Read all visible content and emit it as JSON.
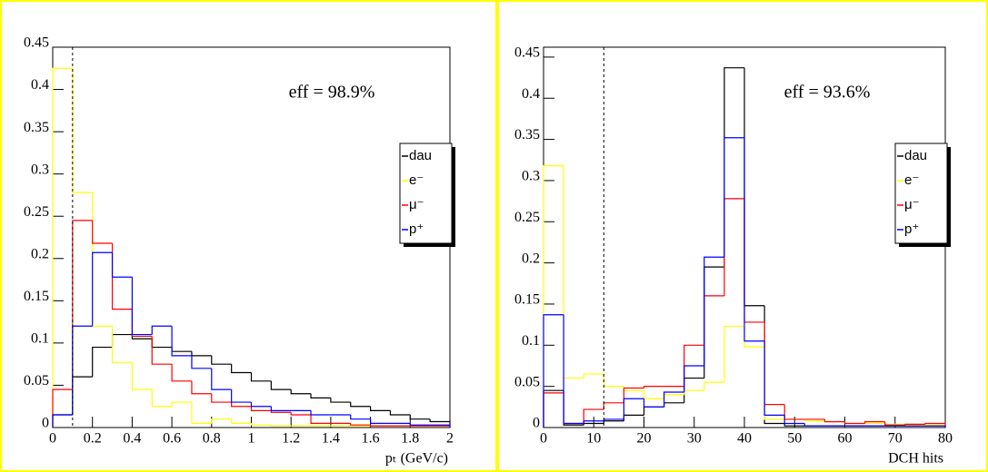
{
  "chart_data": [
    {
      "type": "histogram",
      "xlabel": "pₜ (GeV/c)",
      "annotation": "eff = 98.9%",
      "cut": 0.1,
      "bins": [
        0,
        0.1,
        0.2,
        0.3,
        0.4,
        0.5,
        0.6,
        0.7,
        0.8,
        0.9,
        1.0,
        1.1,
        1.2,
        1.3,
        1.4,
        1.5,
        1.6,
        1.7,
        1.8,
        1.9,
        2.0
      ],
      "xlim": [
        0,
        2
      ],
      "xticks": [
        0,
        0.2,
        0.4,
        0.6,
        0.8,
        1,
        1.2,
        1.4,
        1.6,
        1.8,
        2
      ],
      "ylim": [
        0,
        0.45
      ],
      "yticks": [
        0,
        0.05,
        0.1,
        0.15,
        0.2,
        0.25,
        0.3,
        0.35,
        0.4,
        0.45
      ],
      "series": [
        {
          "name": "dau",
          "color": "#000000",
          "values": [
            0.015,
            0.06,
            0.095,
            0.11,
            0.105,
            0.095,
            0.09,
            0.085,
            0.075,
            0.065,
            0.055,
            0.045,
            0.04,
            0.035,
            0.03,
            0.025,
            0.02,
            0.015,
            0.01,
            0.007
          ]
        },
        {
          "name": "e⁻",
          "color": "#ffff00",
          "values": [
            0.425,
            0.278,
            0.12,
            0.077,
            0.045,
            0.025,
            0.03,
            0.005,
            0.01,
            0.005,
            0.003,
            0.002,
            0.002,
            0.002,
            0.002,
            0.002,
            0.002,
            0.002,
            0.002,
            0.002
          ]
        },
        {
          "name": "μ⁻",
          "color": "#ff0000",
          "values": [
            0.045,
            0.245,
            0.218,
            0.14,
            0.108,
            0.075,
            0.055,
            0.04,
            0.03,
            0.025,
            0.02,
            0.018,
            0.015,
            0.005,
            0.005,
            0.003,
            0.002,
            0.002,
            0.002,
            0.002
          ]
        },
        {
          "name": "p⁺",
          "color": "#0000ff",
          "values": [
            0.015,
            0.12,
            0.207,
            0.178,
            0.11,
            0.12,
            0.085,
            0.07,
            0.045,
            0.03,
            0.025,
            0.02,
            0.02,
            0.015,
            0.015,
            0.01,
            0.005,
            0.005,
            0.003,
            0.003
          ]
        }
      ]
    },
    {
      "type": "histogram",
      "xlabel": "DCH hits",
      "annotation": "eff = 93.6%",
      "cut": 12,
      "bins": [
        0,
        4,
        8,
        12,
        16,
        20,
        24,
        28,
        32,
        36,
        40,
        44,
        48,
        52,
        56,
        60,
        64,
        68,
        72,
        76,
        80
      ],
      "xlim": [
        0,
        80
      ],
      "xticks": [
        0,
        10,
        20,
        30,
        40,
        50,
        60,
        70,
        80
      ],
      "ylim": [
        0,
        0.462
      ],
      "yticks": [
        0,
        0.05,
        0.1,
        0.15,
        0.2,
        0.25,
        0.3,
        0.35,
        0.4,
        0.45
      ],
      "series": [
        {
          "name": "dau",
          "color": "#000000",
          "values": [
            0.045,
            0.003,
            0.005,
            0.008,
            0.015,
            0.025,
            0.03,
            0.06,
            0.195,
            0.437,
            0.148,
            0.005,
            0.002,
            0.002,
            0.002,
            0.002,
            0.002,
            0.002,
            0.002,
            0.002
          ]
        },
        {
          "name": "e⁻",
          "color": "#ffff00",
          "values": [
            0.318,
            0.06,
            0.065,
            0.05,
            0.045,
            0.035,
            0.04,
            0.045,
            0.055,
            0.123,
            0.098,
            0.01,
            0.01,
            0.008,
            0.007,
            0.005,
            0.005,
            0.004,
            0.003,
            0.003
          ]
        },
        {
          "name": "μ⁻",
          "color": "#ff0000",
          "values": [
            0.042,
            0.005,
            0.022,
            0.03,
            0.048,
            0.05,
            0.05,
            0.1,
            0.16,
            0.278,
            0.128,
            0.028,
            0.01,
            0.01,
            0.007,
            0.005,
            0.007,
            0.003,
            0.004,
            0.005
          ]
        },
        {
          "name": "p⁺",
          "color": "#0000ff",
          "values": [
            0.137,
            0.005,
            0.008,
            0.01,
            0.035,
            0.025,
            0.043,
            0.075,
            0.207,
            0.352,
            0.105,
            0.015,
            0.005,
            0.002,
            0.002,
            0.002,
            0.002,
            0.002,
            0.002,
            0.002
          ]
        }
      ]
    }
  ]
}
